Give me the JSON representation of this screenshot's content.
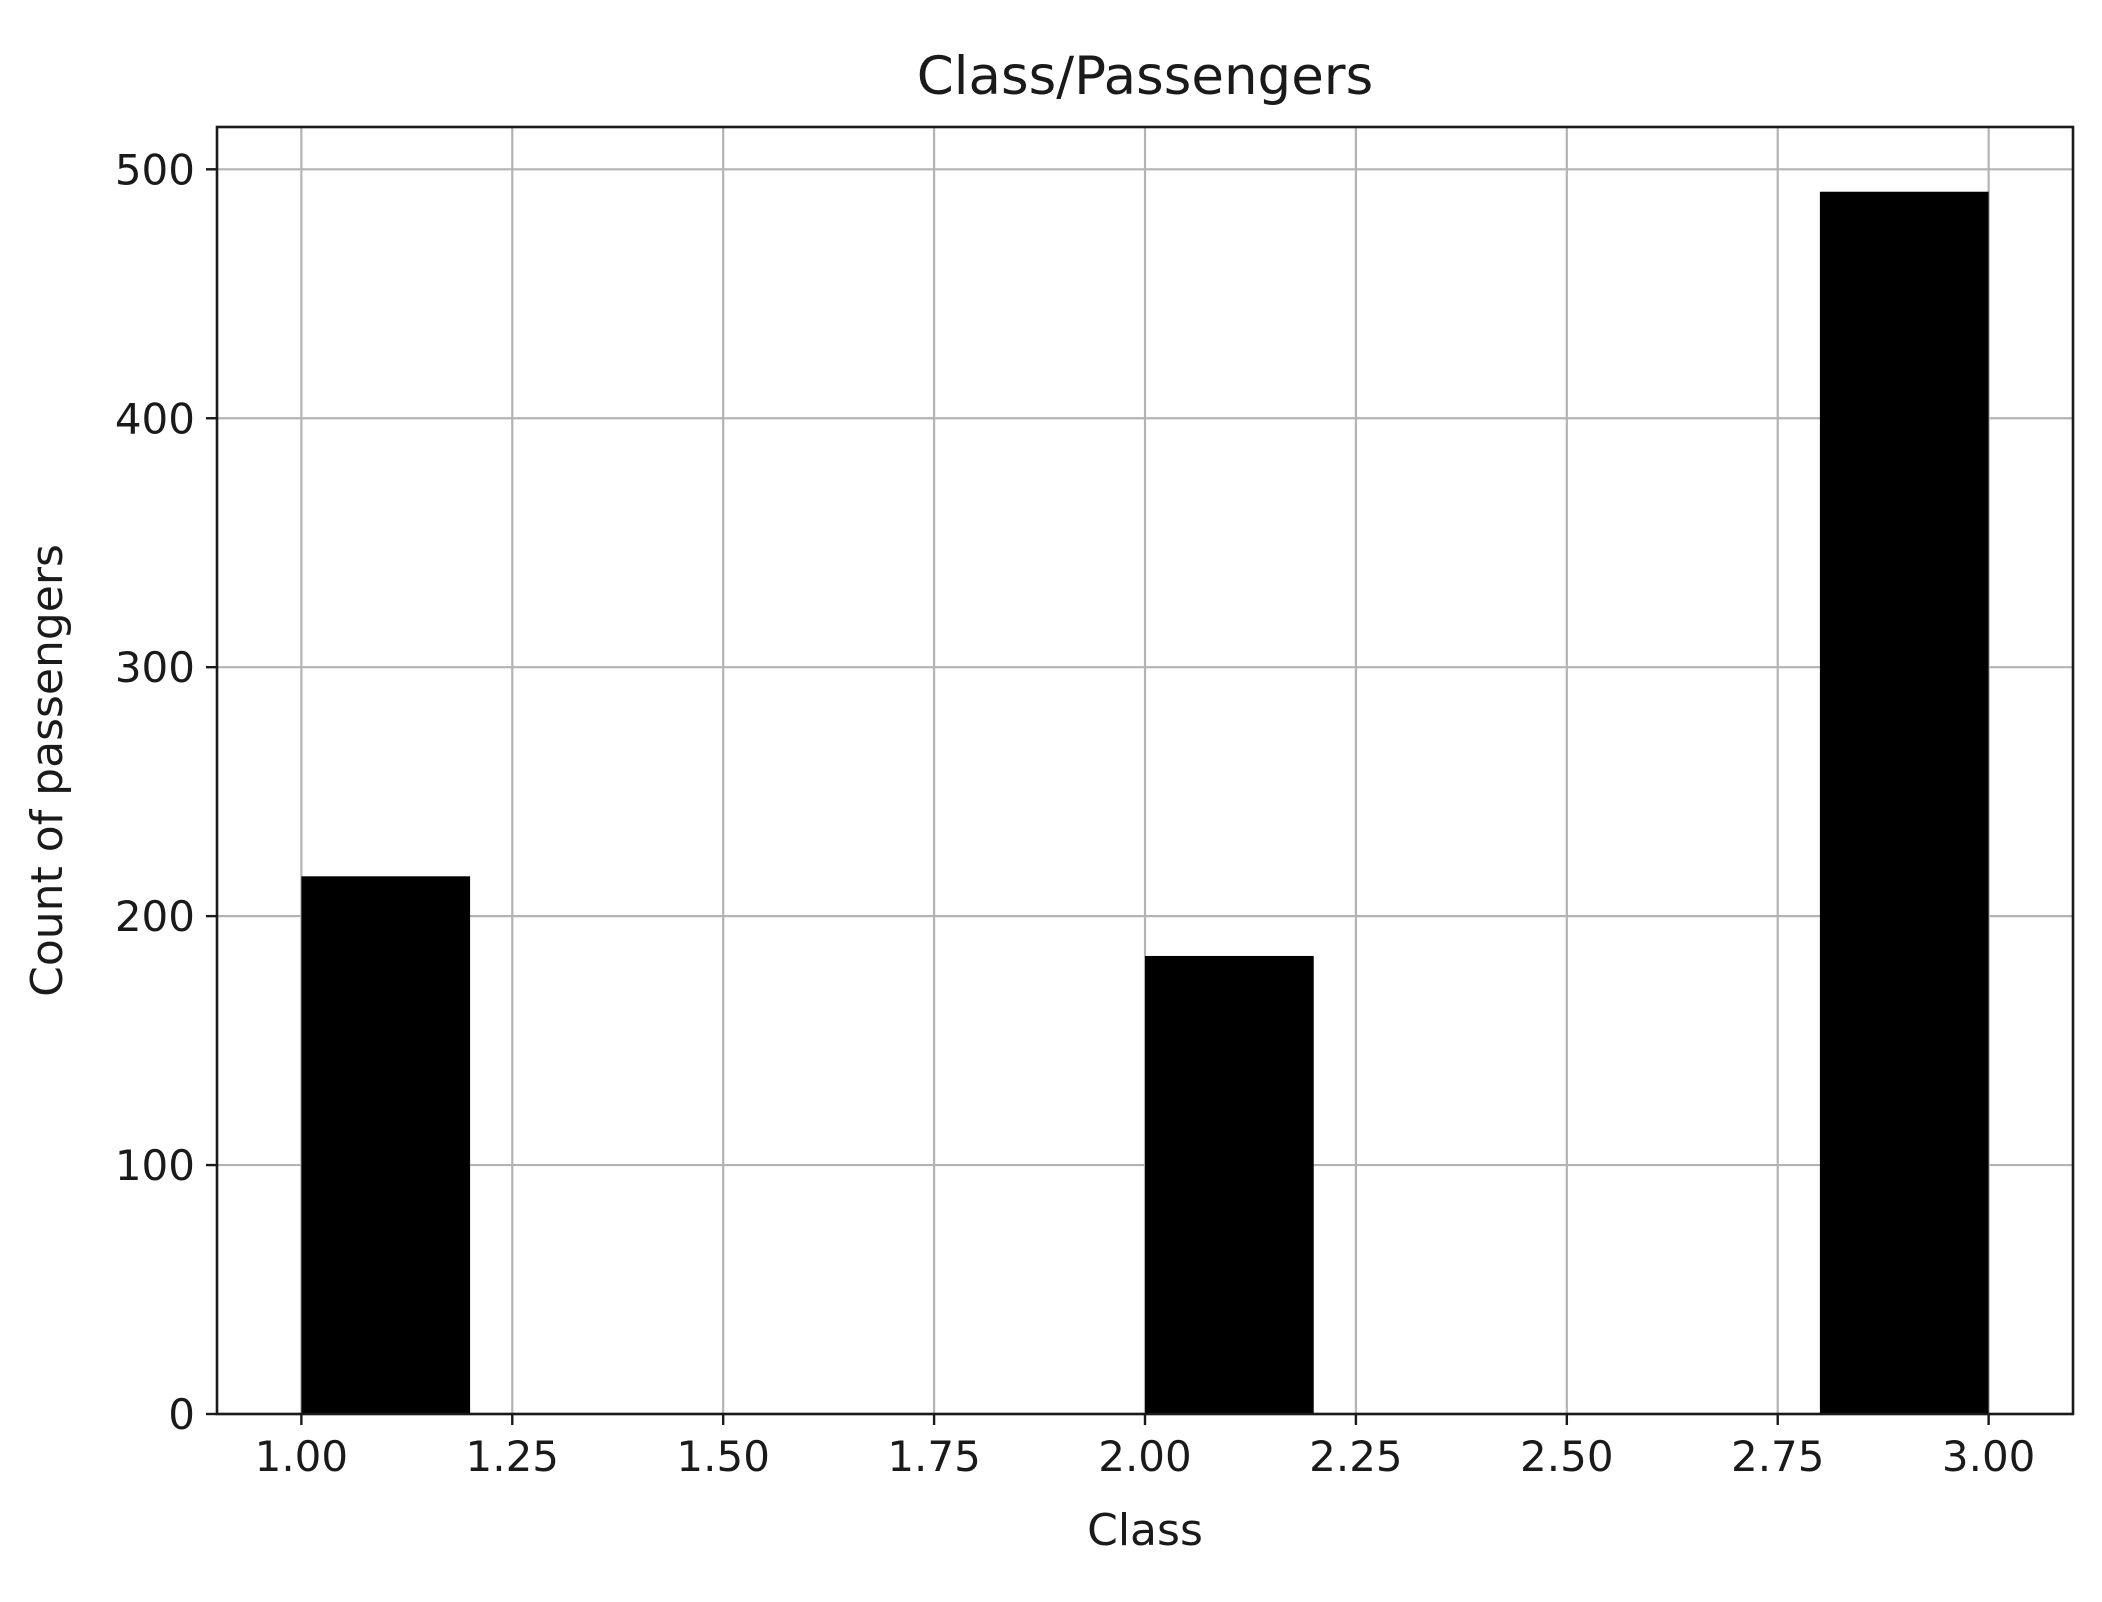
{
  "chart_data": {
    "type": "bar",
    "title": "Class/Passengers",
    "xlabel": "Class",
    "ylabel": "Count of passengers",
    "xlim": [
      0.9,
      3.1
    ],
    "ylim": [
      0,
      517
    ],
    "xticks": [
      {
        "value": 1.0,
        "label": "1.00"
      },
      {
        "value": 1.25,
        "label": "1.25"
      },
      {
        "value": 1.5,
        "label": "1.50"
      },
      {
        "value": 1.75,
        "label": "1.75"
      },
      {
        "value": 2.0,
        "label": "2.00"
      },
      {
        "value": 2.25,
        "label": "2.25"
      },
      {
        "value": 2.5,
        "label": "2.50"
      },
      {
        "value": 2.75,
        "label": "2.75"
      },
      {
        "value": 3.0,
        "label": "3.00"
      }
    ],
    "yticks": [
      {
        "value": 0,
        "label": "0"
      },
      {
        "value": 100,
        "label": "100"
      },
      {
        "value": 200,
        "label": "200"
      },
      {
        "value": 300,
        "label": "300"
      },
      {
        "value": 400,
        "label": "400"
      },
      {
        "value": 500,
        "label": "500"
      }
    ],
    "grid": true,
    "bar_color": "#000000",
    "bars": [
      {
        "x_start": 1.0,
        "x_end": 1.2,
        "value": 216
      },
      {
        "x_start": 2.0,
        "x_end": 2.2,
        "value": 184
      },
      {
        "x_start": 2.8,
        "x_end": 3.0,
        "value": 491
      }
    ]
  }
}
